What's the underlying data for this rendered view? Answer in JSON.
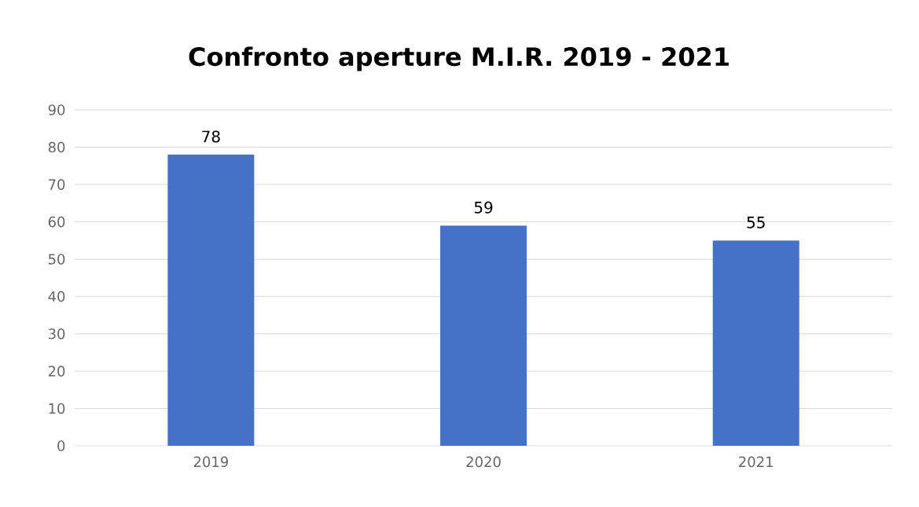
{
  "chart_data": {
    "type": "bar",
    "title": "Confronto aperture M.I.R. 2019 - 2021",
    "categories": [
      "2019",
      "2020",
      "2021"
    ],
    "values": [
      78,
      59,
      55
    ],
    "color": "#4472c4",
    "ylim": [
      0,
      90
    ],
    "yticks": [
      0,
      10,
      20,
      30,
      40,
      50,
      60,
      70,
      80,
      90
    ],
    "grid": "y",
    "data_labels": true
  }
}
